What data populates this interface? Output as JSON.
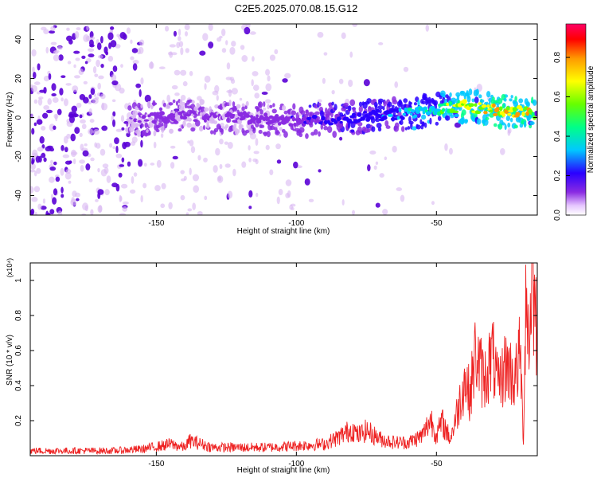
{
  "figure_title": "C2E5.2025.070.08.15.G12",
  "colors": {
    "snr_line": "#ee2222",
    "scatter_high": "#5a00d6",
    "scatter_low": "#d9b8f2",
    "axis": "#000000"
  },
  "chart_data": [
    {
      "type": "heatmap",
      "title": "C2E5.2025.070.08.15.G12",
      "xlabel": "Height of straight line (km)",
      "ylabel": "Frequency (Hz)",
      "xlim": [
        -195,
        -14
      ],
      "ylim": [
        -50,
        48
      ],
      "x_ticks": [
        -150,
        -100,
        -50
      ],
      "y_ticks": [
        -40,
        -20,
        0,
        20,
        40
      ],
      "grid": false,
      "colorbar": {
        "label": "Normalized spectral amplitude",
        "range": [
          0,
          0.97
        ],
        "ticks": [
          0.0,
          0.2,
          0.4,
          0.6,
          0.8
        ],
        "colormap": "rainbow: violet-blue-cyan-green-yellow-orange-red"
      },
      "ridge": {
        "description": "Frequency ridge of high spectral amplitude",
        "x": [
          -160,
          -150,
          -140,
          -130,
          -120,
          -110,
          -100,
          -90,
          -80,
          -70,
          -60,
          -50,
          -45,
          -40,
          -35,
          -30,
          -25,
          -20,
          -15
        ],
        "frequency": [
          -2,
          0,
          1,
          0,
          0,
          -1,
          -2,
          -1,
          0,
          1,
          2,
          4,
          5,
          6,
          5,
          4,
          3,
          3,
          2
        ],
        "amplitude": [
          0.15,
          0.2,
          0.2,
          0.18,
          0.2,
          0.22,
          0.25,
          0.3,
          0.35,
          0.4,
          0.5,
          0.6,
          0.75,
          0.85,
          0.8,
          0.9,
          0.92,
          0.9,
          0.8
        ]
      }
    },
    {
      "type": "line",
      "xlabel": "Height of straight line (km)",
      "ylabel": "SNR (10 * v/v)",
      "y_multiplier": "(x10⁴)",
      "xlim": [
        -195,
        -14
      ],
      "ylim": [
        0,
        1.1
      ],
      "x_ticks": [
        -150,
        -100,
        -50
      ],
      "y_ticks": [
        0.2,
        0.4,
        0.6,
        0.8,
        1.0
      ],
      "grid": false,
      "series": [
        {
          "x": [
            -195,
            -180,
            -165,
            -155,
            -148,
            -145,
            -140,
            -138,
            -130,
            -120,
            -110,
            -100,
            -90,
            -85,
            -80,
            -78,
            -75,
            -70,
            -65,
            -60,
            -55,
            -52,
            -50,
            -48,
            -45,
            -42,
            -40,
            -38,
            -36,
            -35,
            -33,
            -30,
            -28,
            -25,
            -22,
            -20,
            -19,
            -18,
            -17,
            -16,
            -15,
            -14
          ],
          "values": [
            0.03,
            0.03,
            0.03,
            0.04,
            0.06,
            0.07,
            0.05,
            0.09,
            0.05,
            0.05,
            0.05,
            0.06,
            0.07,
            0.11,
            0.16,
            0.12,
            0.15,
            0.1,
            0.08,
            0.08,
            0.12,
            0.22,
            0.12,
            0.2,
            0.1,
            0.3,
            0.45,
            0.36,
            0.62,
            0.55,
            0.45,
            0.6,
            0.4,
            0.55,
            0.45,
            0.62,
            0.05,
            1.08,
            0.6,
            1.1,
            0.9,
            0.75
          ]
        }
      ]
    }
  ]
}
